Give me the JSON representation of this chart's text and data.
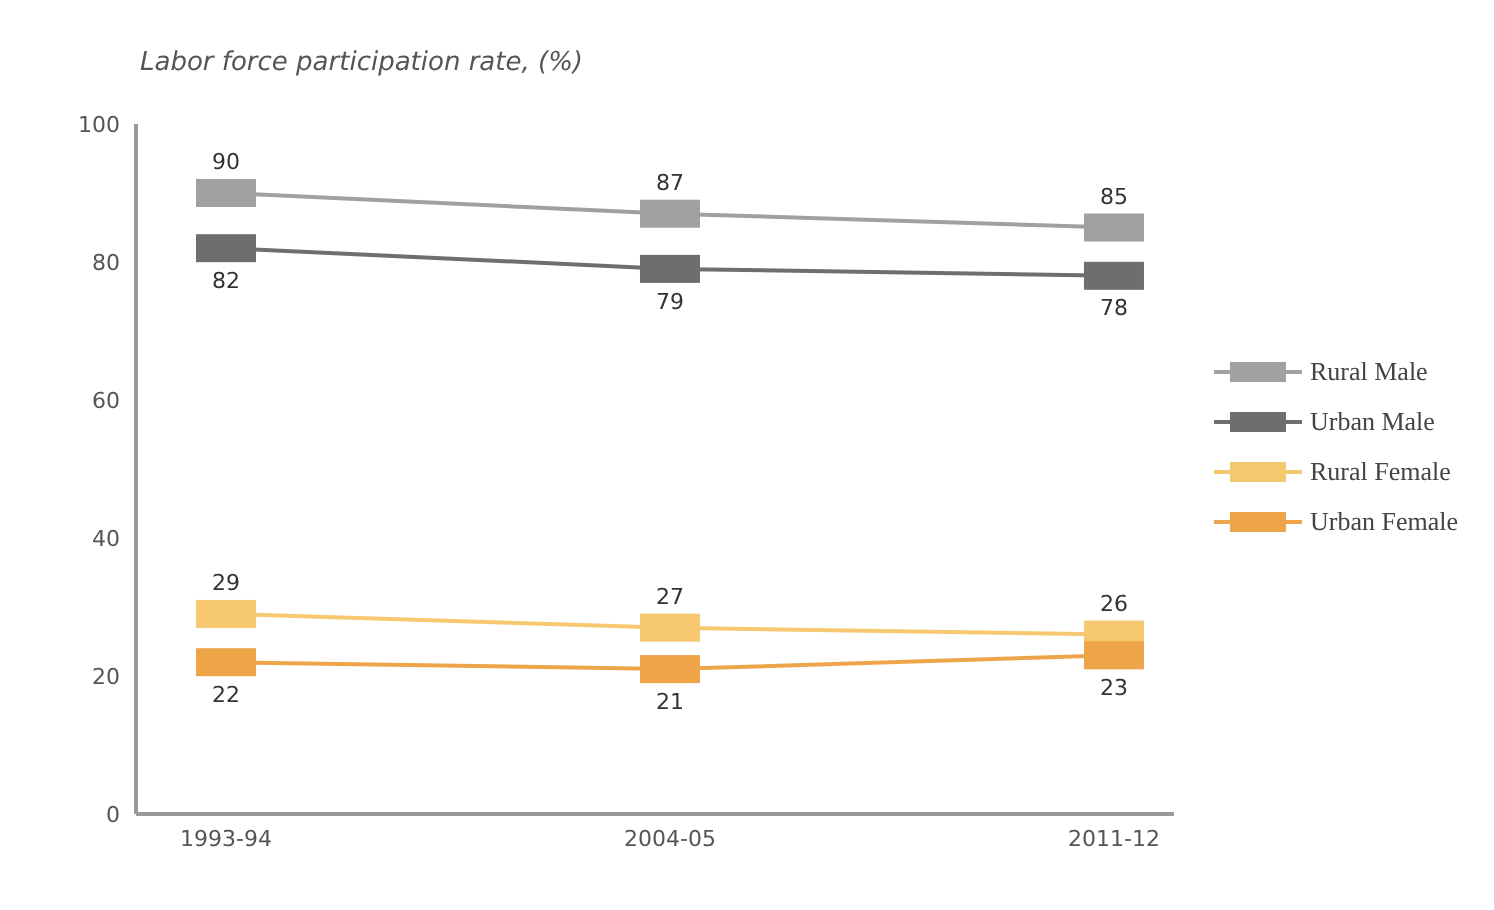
{
  "chart_data": {
    "type": "line",
    "title": "Labor force participation rate, (%)",
    "categories": [
      "1993-94",
      "2004-05",
      "2011-12"
    ],
    "series": [
      {
        "name": "Rural Male",
        "color": "#a0a0a0",
        "values": [
          90,
          87,
          85
        ]
      },
      {
        "name": "Urban Male",
        "color": "#6e6e6e",
        "values": [
          82,
          79,
          78
        ]
      },
      {
        "name": "Rural Female",
        "color": "#f6c970",
        "values": [
          29,
          27,
          26
        ]
      },
      {
        "name": "Urban Female",
        "color": "#eea54a",
        "values": [
          22,
          21,
          23
        ]
      }
    ],
    "ylim": [
      0,
      100
    ],
    "yticks": [
      0,
      20,
      40,
      60,
      80,
      100
    ],
    "grid": false,
    "legend": "right",
    "marker": "square",
    "line_style": "solid",
    "data_labels": true
  }
}
